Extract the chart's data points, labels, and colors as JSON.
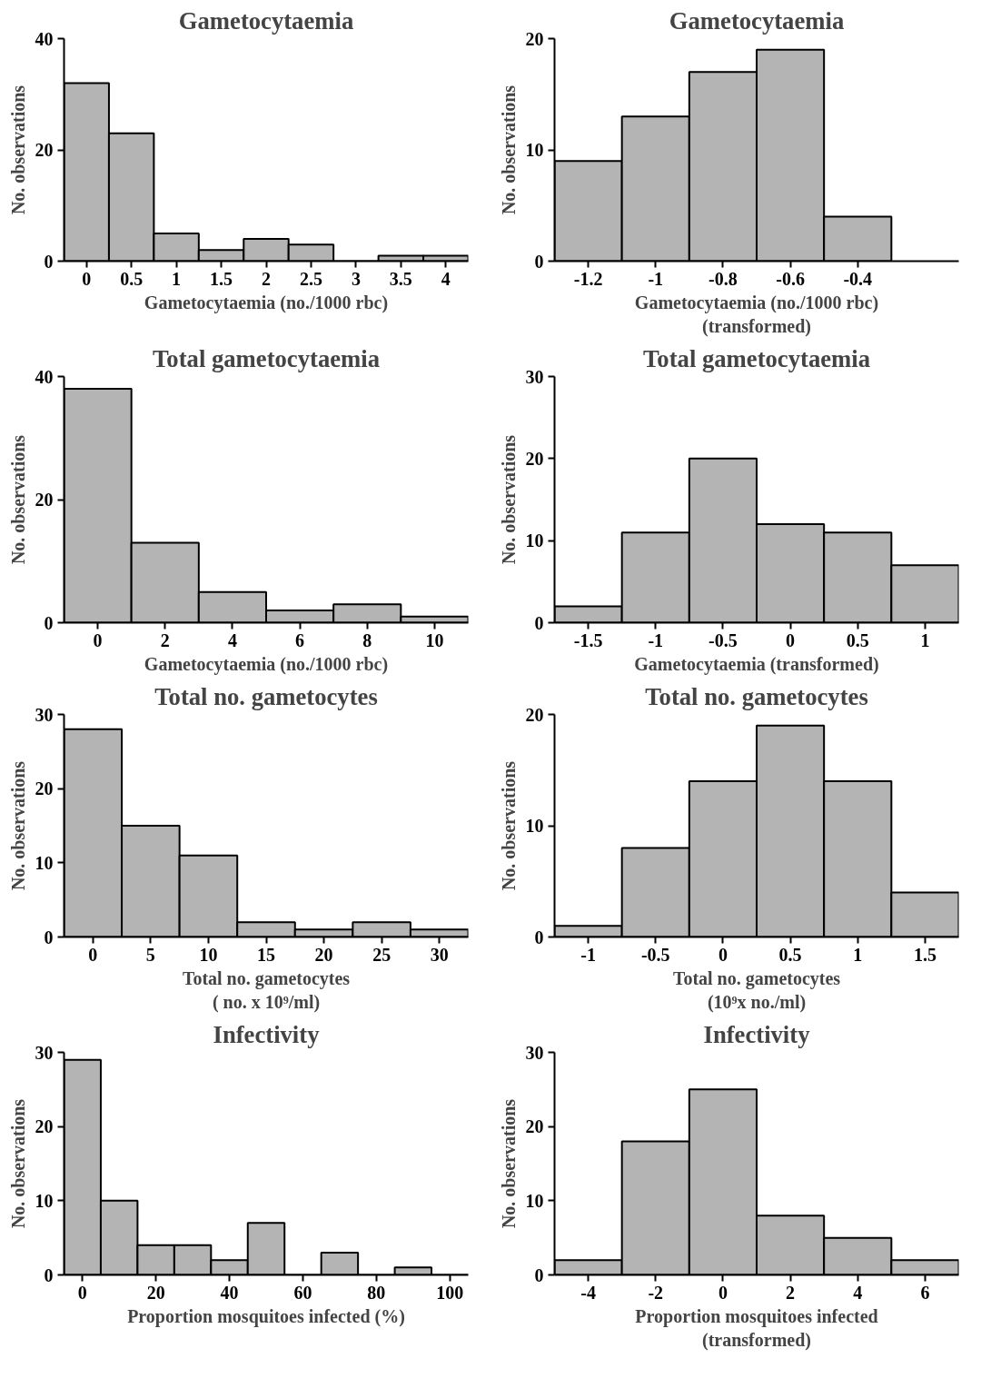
{
  "chart_data": [
    {
      "type": "histogram",
      "title": "Gametocytaemia",
      "xlabel": "Gametocytaemia (no./1000 rbc)",
      "ylabel": "No. observations",
      "color": "#b4b4b4",
      "bins": [
        -0.25,
        0.25,
        0.75,
        1.25,
        1.75,
        2.25,
        2.75,
        3.25,
        3.75,
        4.25
      ],
      "values": [
        32,
        23,
        5,
        2,
        4,
        3,
        0,
        1,
        1
      ],
      "xlim": [
        -0.25,
        4.25
      ],
      "xticks": [
        0,
        0.5,
        1,
        1.5,
        2,
        2.5,
        3,
        3.5,
        4
      ],
      "ylim": [
        0,
        40
      ],
      "yticks": [
        0,
        20,
        40
      ],
      "grid": false
    },
    {
      "type": "histogram",
      "title": "Gametocytaemia",
      "xlabel": "Gametocytaemia (no./1000 rbc)\n(transformed)",
      "ylabel": "No. observations",
      "color": "#b4b4b4",
      "bins": [
        -1.3,
        -1.1,
        -0.9,
        -0.7,
        -0.5,
        -0.3
      ],
      "values": [
        9,
        13,
        17,
        19,
        4
      ],
      "xlim": [
        -1.3,
        -0.1
      ],
      "xticks": [
        -1.2,
        -1,
        -0.8,
        -0.6,
        -0.4
      ],
      "ylim": [
        0,
        20
      ],
      "yticks": [
        0,
        10,
        20
      ],
      "grid": false
    },
    {
      "type": "histogram",
      "title": "Total gametocytaemia",
      "xlabel": "Gametocytaemia (no./1000 rbc)",
      "ylabel": "No. observations",
      "color": "#b4b4b4",
      "bins": [
        -1,
        1,
        3,
        5,
        7,
        9,
        11
      ],
      "values": [
        38,
        13,
        5,
        2,
        3,
        1
      ],
      "xlim": [
        -1,
        11
      ],
      "xticks": [
        0,
        2,
        4,
        6,
        8,
        10
      ],
      "ylim": [
        0,
        40
      ],
      "yticks": [
        0,
        20,
        40
      ],
      "grid": false
    },
    {
      "type": "histogram",
      "title": "Total gametocytaemia",
      "xlabel": "Gametocytaemia (transformed)",
      "ylabel": "No. observations",
      "color": "#b4b4b4",
      "bins": [
        -1.75,
        -1.25,
        -0.75,
        -0.25,
        0.25,
        0.75,
        1.25
      ],
      "values": [
        2,
        11,
        20,
        12,
        11,
        7
      ],
      "xlim": [
        -1.75,
        1.25
      ],
      "xticks": [
        -1.5,
        -1,
        -0.5,
        0,
        0.5,
        1
      ],
      "ylim": [
        0,
        30
      ],
      "yticks": [
        0,
        10,
        20,
        30
      ],
      "grid": false
    },
    {
      "type": "histogram",
      "title": "Total no. gametocytes",
      "xlabel": "Total no. gametocytes\n( no. x 10⁹/ml)",
      "ylabel": "No. observations",
      "color": "#b4b4b4",
      "bins": [
        -2.5,
        2.5,
        7.5,
        12.5,
        17.5,
        22.5,
        27.5,
        32.5
      ],
      "values": [
        28,
        15,
        11,
        2,
        1,
        2,
        1
      ],
      "xlim": [
        -2.5,
        32.5
      ],
      "xticks": [
        0,
        5,
        10,
        15,
        20,
        25,
        30
      ],
      "ylim": [
        0,
        30
      ],
      "yticks": [
        0,
        10,
        20,
        30
      ],
      "grid": false
    },
    {
      "type": "histogram",
      "title": "Total no. gametocytes",
      "xlabel": "Total no. gametocytes\n(10⁹x no./ml)",
      "ylabel": "No. observations",
      "color": "#b4b4b4",
      "bins": [
        -1.25,
        -0.75,
        -0.25,
        0.25,
        0.75,
        1.25,
        1.75
      ],
      "values": [
        1,
        8,
        14,
        19,
        14,
        4
      ],
      "xlim": [
        -1.25,
        1.75
      ],
      "xticks": [
        -1,
        -0.5,
        0,
        0.5,
        1,
        1.5
      ],
      "ylim": [
        0,
        20
      ],
      "yticks": [
        0,
        10,
        20
      ],
      "grid": false
    },
    {
      "type": "histogram",
      "title": "Infectivity",
      "xlabel": "Proportion mosquitoes infected (%)",
      "ylabel": "No. observations",
      "color": "#b4b4b4",
      "bins": [
        -5,
        5,
        15,
        25,
        35,
        45,
        55,
        65,
        75,
        85,
        95,
        105
      ],
      "values": [
        29,
        10,
        4,
        4,
        2,
        7,
        0,
        3,
        0,
        1,
        0
      ],
      "xlim": [
        -5,
        105
      ],
      "xticks": [
        0,
        20,
        40,
        60,
        80,
        100
      ],
      "ylim": [
        0,
        30
      ],
      "yticks": [
        0,
        10,
        20,
        30
      ],
      "grid": false
    },
    {
      "type": "histogram",
      "title": "Infectivity",
      "xlabel": "Proportion mosquitoes infected\n(transformed)",
      "ylabel": "No. observations",
      "color": "#b4b4b4",
      "bins": [
        -5,
        -3,
        -1,
        1,
        3,
        5,
        7
      ],
      "values": [
        2,
        18,
        25,
        8,
        5,
        2
      ],
      "xlim": [
        -5,
        7
      ],
      "xticks": [
        -4,
        -2,
        0,
        2,
        4,
        6
      ],
      "ylim": [
        0,
        30
      ],
      "yticks": [
        0,
        10,
        20,
        30
      ],
      "grid": false
    }
  ]
}
